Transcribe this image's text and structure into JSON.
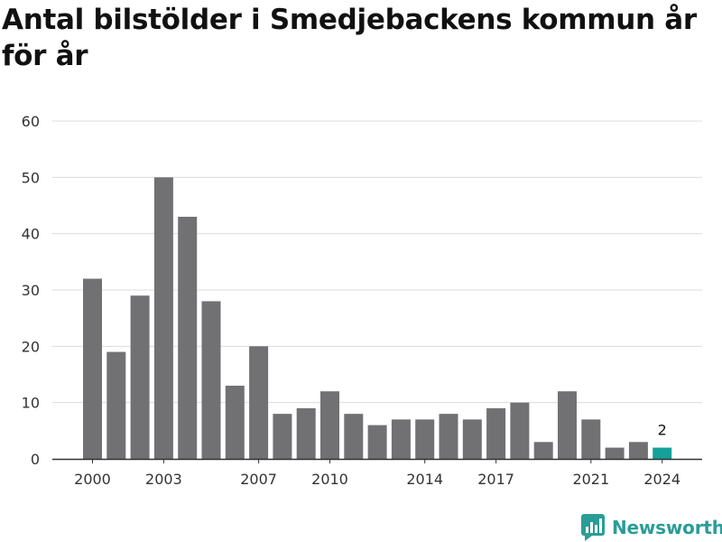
{
  "title": "Antal bilstölder i Smedjebackens kommun år för år",
  "brand": {
    "name": "Newsworthy",
    "icon": "newsworthy-logo-icon"
  },
  "colors": {
    "bar": "#717073",
    "highlight": "#16a09a",
    "grid": "#dcdcdc",
    "axis": "#333333"
  },
  "chart_data": {
    "type": "bar",
    "title": "Antal bilstölder i Smedjebackens kommun år för år",
    "xlabel": "",
    "ylabel": "",
    "ylim": [
      0,
      60
    ],
    "yticks": [
      0,
      10,
      20,
      30,
      40,
      50,
      60
    ],
    "grid": true,
    "categories": [
      2000,
      2001,
      2002,
      2003,
      2004,
      2005,
      2006,
      2007,
      2008,
      2009,
      2010,
      2011,
      2012,
      2013,
      2014,
      2015,
      2016,
      2017,
      2018,
      2019,
      2020,
      2021,
      2022,
      2023,
      2024
    ],
    "values": [
      32,
      19,
      29,
      50,
      43,
      28,
      13,
      20,
      8,
      9,
      12,
      8,
      6,
      7,
      7,
      8,
      7,
      9,
      10,
      3,
      12,
      7,
      2,
      3,
      2
    ],
    "xtick_labels": [
      "2000",
      "2003",
      "2007",
      "2010",
      "2014",
      "2017",
      "2021",
      "2024"
    ],
    "highlight": {
      "category": 2024,
      "label": "2"
    }
  }
}
